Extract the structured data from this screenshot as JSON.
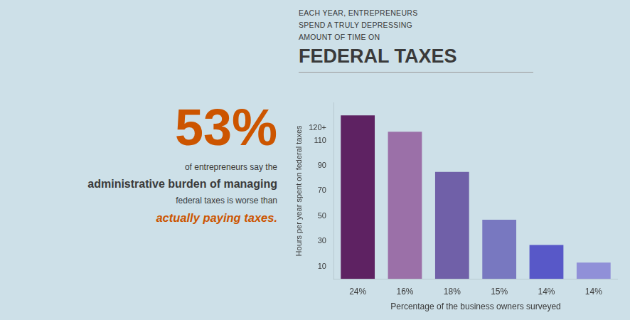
{
  "chart_data": {
    "type": "bar",
    "title": "FEDERAL TAXES",
    "subtitle": "EACH YEAR, ENTREPRENEURS\nSPEND A TRULY DEPRESSING\nAMOUNT OF TIME ON",
    "annotations": [
      "53%",
      "of entrepreneurs say the",
      "administrative burden of managing",
      "federal taxes is worse than",
      "actually paying taxes."
    ],
    "xlabel": "Percentage of the business owners surveyed",
    "ylabel": "Hours per year spent on federal taxes",
    "categories": [
      "24%",
      "16%",
      "18%",
      "15%",
      "14%",
      "14%"
    ],
    "values": [
      130,
      117,
      85,
      47,
      27,
      13
    ],
    "colors": [
      "#5e2262",
      "#9b70a8",
      "#7060a8",
      "#7878c0",
      "#5858c8",
      "#9090d8"
    ],
    "ylim": [
      0,
      140
    ],
    "yticks": [
      10,
      30,
      50,
      70,
      90,
      110,
      {
        "value": 120,
        "label": "120+"
      }
    ],
    "grid": false,
    "legend": false
  }
}
